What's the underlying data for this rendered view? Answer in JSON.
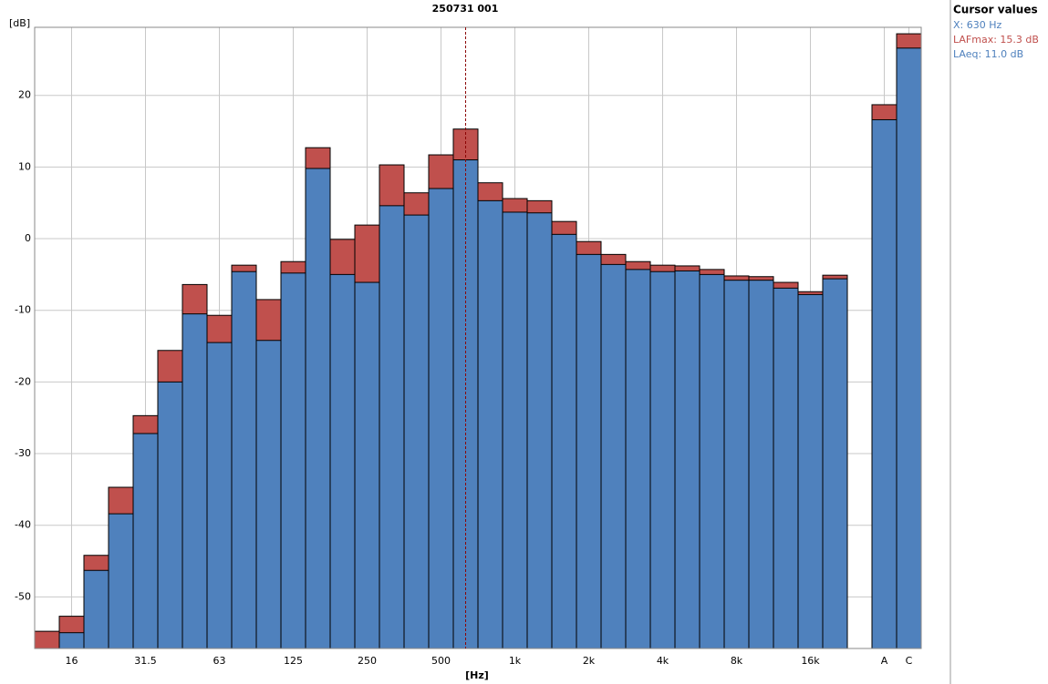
{
  "chart_data": {
    "type": "bar",
    "title": "250731 001",
    "y_label": "[dB]",
    "x_label": "[Hz]",
    "categories": [
      null,
      "16",
      null,
      null,
      "31.5",
      null,
      null,
      "63",
      null,
      null,
      "125",
      null,
      null,
      "250",
      null,
      null,
      "500",
      null,
      null,
      "1k",
      null,
      null,
      "2k",
      null,
      null,
      "4k",
      null,
      null,
      "8k",
      null,
      null,
      "16k",
      null,
      null,
      "A",
      "C"
    ],
    "series": [
      {
        "color": "#c0504d",
        "values": [
          -54.8,
          -52.7,
          -44.2,
          -34.7,
          -24.7,
          -15.6,
          -6.4,
          -10.7,
          -3.7,
          -8.5,
          -3.2,
          12.7,
          -0.1,
          1.9,
          10.3,
          6.4,
          11.7,
          15.3,
          7.8,
          5.6,
          5.3,
          2.4,
          -0.4,
          -2.2,
          -3.2,
          -3.7,
          -3.8,
          -4.3,
          -5.2,
          -5.3,
          -6.1,
          -7.4,
          -5.1,
          null,
          18.7,
          28.6
        ]
      },
      {
        "color": "#4f81bd",
        "values": [
          -58,
          -55.0,
          -46.3,
          -38.4,
          -27.2,
          -20.0,
          -10.5,
          -14.5,
          -4.6,
          -14.2,
          -4.8,
          9.8,
          -5.0,
          -6.1,
          4.6,
          3.3,
          7.0,
          11.0,
          5.3,
          3.7,
          3.6,
          0.6,
          -2.2,
          -3.6,
          -4.3,
          -4.6,
          -4.5,
          -5.0,
          -5.8,
          -5.8,
          -6.9,
          -7.8,
          -5.6,
          null,
          16.6,
          26.6
        ]
      }
    ],
    "ylim": [
      -57.2,
      29.5
    ],
    "yticks": [
      -50,
      -40,
      -30,
      -20,
      -10,
      0,
      10,
      20
    ],
    "grid": true,
    "cursor_panel": {
      "title": "Cursor values",
      "lines": [
        {
          "text": "X: 630 Hz",
          "color": "#4f81bd"
        },
        {
          "text": "LAFmax: 15.3 dB",
          "color": "#c0504d"
        },
        {
          "text": "LAeq: 11.0 dB",
          "color": "#4f81bd"
        }
      ]
    }
  }
}
